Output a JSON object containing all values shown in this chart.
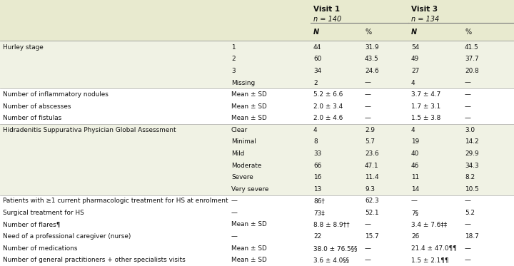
{
  "header_bg": "#e8eacf",
  "row_bg_green": "#f0f2e4",
  "row_bg_white": "#ffffff",
  "visit1_label": "Visit 1",
  "visit1_n": "n = 140",
  "visit3_label": "Visit 3",
  "visit3_n": "n = 134",
  "rows": [
    [
      "Hurley stage",
      "1",
      "44",
      "31.9",
      "54",
      "41.5"
    ],
    [
      "",
      "2",
      "60",
      "43.5",
      "49",
      "37.7"
    ],
    [
      "",
      "3",
      "34",
      "24.6",
      "27",
      "20.8"
    ],
    [
      "",
      "Missing",
      "2",
      "—",
      "4",
      "—"
    ],
    [
      "Number of inflammatory nodules",
      "Mean ± SD",
      "5.2 ± 6.6",
      "—",
      "3.7 ± 4.7",
      "—"
    ],
    [
      "Number of abscesses",
      "Mean ± SD",
      "2.0 ± 3.4",
      "—",
      "1.7 ± 3.1",
      "—"
    ],
    [
      "Number of fistulas",
      "Mean ± SD",
      "2.0 ± 4.6",
      "—",
      "1.5 ± 3.8",
      "—"
    ],
    [
      "Hidradenitis Suppurativa Physician Global Assessment",
      "Clear",
      "4",
      "2.9",
      "4",
      "3.0"
    ],
    [
      "",
      "Minimal",
      "8",
      "5.7",
      "19",
      "14.2"
    ],
    [
      "",
      "Mild",
      "33",
      "23.6",
      "40",
      "29.9"
    ],
    [
      "",
      "Moderate",
      "66",
      "47.1",
      "46",
      "34.3"
    ],
    [
      "",
      "Severe",
      "16",
      "11.4",
      "11",
      "8.2"
    ],
    [
      "",
      "Very severe",
      "13",
      "9.3",
      "14",
      "10.5"
    ],
    [
      "Patients with ≥1 current pharmacologic treatment for HS at enrolment",
      "—",
      "86†",
      "62.3",
      "—",
      "—"
    ],
    [
      "Surgical treatment for HS",
      "—",
      "73‡",
      "52.1",
      "7§",
      "5.2"
    ],
    [
      "Number of flares¶",
      "Mean ± SD",
      "8.8 ± 8.9††",
      "—",
      "3.4 ± 7.6‡‡",
      "—"
    ],
    [
      "Need of a professional caregiver (nurse)",
      "—",
      "22",
      "15.7",
      "26",
      "18.7"
    ],
    [
      "Number of medications",
      "Mean ± SD",
      "38.0 ± 76.5§§",
      "—",
      "21.4 ± 47.0¶¶",
      "—"
    ],
    [
      "Number of general practitioners + other specialists visits",
      "Mean ± SD",
      "3.6 ± 4.0§§",
      "—",
      "1.5 ± 2.1¶¶",
      "—"
    ]
  ],
  "green_row_indices": [
    0,
    1,
    2,
    3,
    7,
    8,
    9,
    10,
    11,
    12
  ],
  "separator_after": [
    3,
    6,
    12
  ],
  "figsize": [
    7.2,
    3.73
  ],
  "dpi": 100
}
